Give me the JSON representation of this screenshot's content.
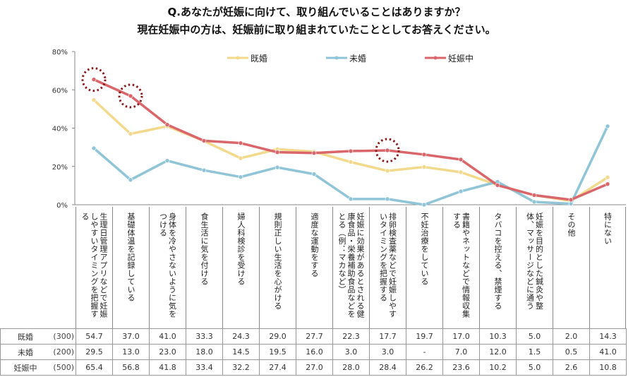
{
  "title": {
    "line1": "Q.あなたが妊娠に向けて、取り組んでいることはありますか？",
    "line2": "現在妊娠中の方は、妊娠前に取り組まれていたこととしてお答えください。"
  },
  "chart_data": {
    "type": "line",
    "title": "Q.あなたが妊娠に向けて、取り組んでいることはありますか？ 現在妊娠中の方は、妊娠前に取り組まれていたこととしてお答えください。",
    "xlabel": "",
    "ylabel": "",
    "ylim": [
      0,
      80
    ],
    "yticks": [
      "0%",
      "20%",
      "40%",
      "60%",
      "80%"
    ],
    "yticks_values": [
      0,
      20,
      40,
      60,
      80
    ],
    "grid": false,
    "legend_position": "top",
    "categories": [
      "生理日管理アプリなどで妊娠しやすいタイミングを把握する",
      "基礎体温を記録している",
      "身体を冷やさないように気をつける",
      "食生活に気を付ける",
      "婦人科検診を受ける",
      "規則正しい生活を心がける",
      "適度な運動をする",
      "妊娠に効果があるとされる健康食品・栄養補助食品などをとる（例：マカなど）",
      "排卵検査薬などで妊娠しやすいタイミングを把握する",
      "不妊治療をしている",
      "書籍やネットなどで情報収集する",
      "タバコを控える、禁煙する",
      "妊娠を目的とした鍼灸や整体、マッサージなどに通う",
      "その他",
      "特にない"
    ],
    "series": [
      {
        "name": "既婚",
        "n": "(300)",
        "color": "#f3d98b",
        "values": [
          54.7,
          37.0,
          41.0,
          33.3,
          24.3,
          29.0,
          27.7,
          22.3,
          17.7,
          19.7,
          17.0,
          10.3,
          5.0,
          2.0,
          14.3
        ],
        "display": [
          "54.7",
          "37.0",
          "41.0",
          "33.3",
          "24.3",
          "29.0",
          "27.7",
          "22.3",
          "17.7",
          "19.7",
          "17.0",
          "10.3",
          "5.0",
          "2.0",
          "14.3"
        ]
      },
      {
        "name": "未婚",
        "n": "(200)",
        "color": "#8fc5d6",
        "values": [
          29.5,
          13.0,
          23.0,
          18.0,
          14.5,
          19.5,
          16.0,
          3.0,
          3.0,
          0,
          7.0,
          12.0,
          1.5,
          0.5,
          41.0
        ],
        "display": [
          "29.5",
          "13.0",
          "23.0",
          "18.0",
          "14.5",
          "19.5",
          "16.0",
          "3.0",
          "3.0",
          "-",
          "7.0",
          "12.0",
          "1.5",
          "0.5",
          "41.0"
        ]
      },
      {
        "name": "妊娠中",
        "n": "(500)",
        "color": "#d9666a",
        "values": [
          65.4,
          56.8,
          41.8,
          33.4,
          32.2,
          27.4,
          27.0,
          28.0,
          28.4,
          26.2,
          23.6,
          10.2,
          5.0,
          2.6,
          10.8
        ],
        "display": [
          "65.4",
          "56.8",
          "41.8",
          "33.4",
          "32.2",
          "27.4",
          "27.0",
          "28.0",
          "28.4",
          "26.2",
          "23.6",
          "10.2",
          "5.0",
          "2.6",
          "10.8"
        ]
      }
    ],
    "annotations": [
      {
        "type": "dotted-circle",
        "series": "妊娠中",
        "category_index": 0,
        "color": "#8b1a1a"
      },
      {
        "type": "dotted-circle",
        "series": "妊娠中",
        "category_index": 1,
        "color": "#8b1a1a"
      },
      {
        "type": "dotted-circle",
        "series": "妊娠中",
        "category_index": 8,
        "color": "#8b1a1a"
      }
    ]
  }
}
